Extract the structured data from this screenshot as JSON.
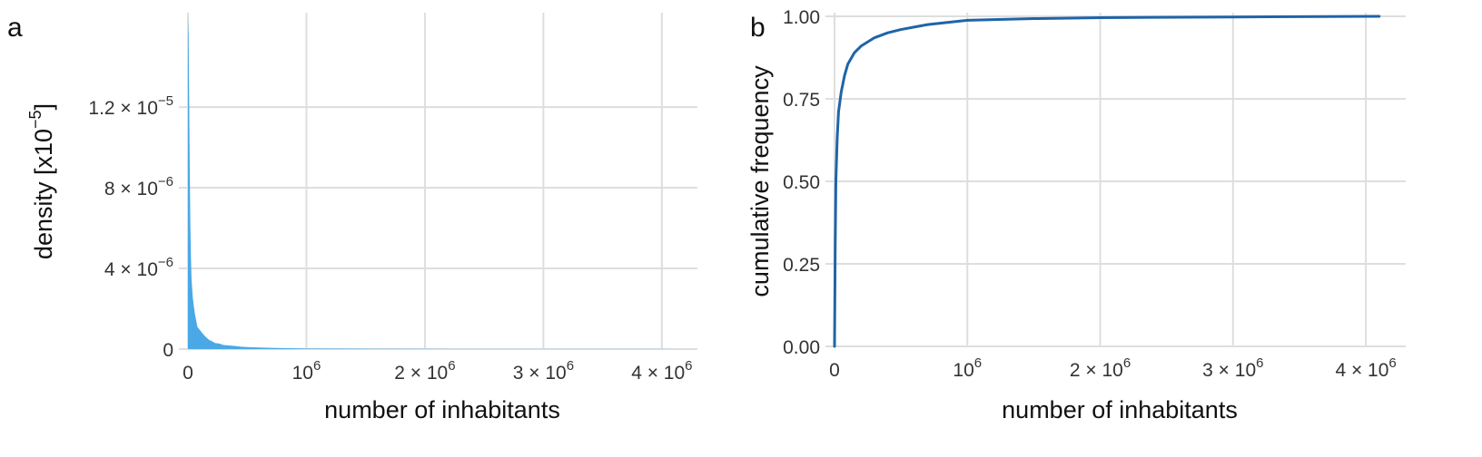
{
  "chart_data": [
    {
      "panel": "a",
      "type": "area",
      "xlabel": "number of inhabitants",
      "ylabel": "density [x10",
      "ylabel_exp": "−5",
      "ylabel_close": "]",
      "xlim": [
        0,
        4300000
      ],
      "ylim": [
        0,
        1.65e-05
      ],
      "grid": true,
      "color": "#4aa8e6",
      "x_ticks": [
        {
          "value": 0,
          "base": "0",
          "exp": ""
        },
        {
          "value": 1000000,
          "base": "10",
          "exp": "6"
        },
        {
          "value": 2000000,
          "base": "2 × 10",
          "exp": "6"
        },
        {
          "value": 3000000,
          "base": "3 × 10",
          "exp": "6"
        },
        {
          "value": 4000000,
          "base": "4 × 10",
          "exp": "6"
        }
      ],
      "y_ticks": [
        {
          "value": 0,
          "base": "0",
          "exp": ""
        },
        {
          "value": 4e-06,
          "base": "4 × 10",
          "exp": "−6"
        },
        {
          "value": 8e-06,
          "base": "8 × 10",
          "exp": "−6"
        },
        {
          "value": 1.2e-05,
          "base": "1.2 × 10",
          "exp": "−5"
        }
      ],
      "x": [
        0,
        5000,
        10000,
        15000,
        20000,
        25000,
        30000,
        40000,
        50000,
        60000,
        70000,
        80000,
        100000,
        120000,
        150000,
        180000,
        200000,
        230000,
        260000,
        300000,
        350000,
        400000,
        450000,
        500000,
        600000,
        700000,
        800000,
        900000,
        1000000,
        1500000,
        2000000,
        2500000,
        3000000,
        3500000,
        4000000,
        4100000
      ],
      "y": [
        1.65e-05,
        1.55e-05,
        1.25e-05,
        9e-06,
        6.2e-06,
        4.6e-06,
        3.5e-06,
        2.6e-06,
        2.1e-06,
        1.7e-06,
        1.4e-06,
        1.1e-06,
        9.5e-07,
        8e-07,
        6e-07,
        4.5e-07,
        4e-07,
        3e-07,
        2.8e-07,
        2e-07,
        1.8e-07,
        1.5e-07,
        1.2e-07,
        1e-07,
        8e-08,
        6e-08,
        5e-08,
        4e-08,
        3e-08,
        1.5e-08,
        1e-08,
        7e-09,
        5e-09,
        4e-09,
        3e-09,
        0
      ]
    },
    {
      "panel": "b",
      "type": "line",
      "xlabel": "number of inhabitants",
      "ylabel": "cumulative frequency",
      "xlim": [
        0,
        4300000
      ],
      "ylim": [
        0,
        1
      ],
      "grid": true,
      "color": "#1f64a8",
      "x_ticks": [
        {
          "value": 0,
          "base": "0",
          "exp": ""
        },
        {
          "value": 1000000,
          "base": "10",
          "exp": "6"
        },
        {
          "value": 2000000,
          "base": "2 × 10",
          "exp": "6"
        },
        {
          "value": 3000000,
          "base": "3 × 10",
          "exp": "6"
        },
        {
          "value": 4000000,
          "base": "4 × 10",
          "exp": "6"
        }
      ],
      "y_ticks": [
        {
          "value": 0,
          "base": "0.00",
          "exp": ""
        },
        {
          "value": 0.25,
          "base": "0.25",
          "exp": ""
        },
        {
          "value": 0.5,
          "base": "0.50",
          "exp": ""
        },
        {
          "value": 0.75,
          "base": "0.75",
          "exp": ""
        },
        {
          "value": 1,
          "base": "1.00",
          "exp": ""
        }
      ],
      "x": [
        0,
        5000,
        10000,
        20000,
        30000,
        50000,
        75000,
        100000,
        150000,
        200000,
        300000,
        400000,
        500000,
        700000,
        1000000,
        1500000,
        2000000,
        3000000,
        4100000
      ],
      "y": [
        0,
        0.3,
        0.5,
        0.63,
        0.71,
        0.77,
        0.82,
        0.855,
        0.89,
        0.91,
        0.935,
        0.95,
        0.96,
        0.975,
        0.988,
        0.993,
        0.996,
        0.998,
        1
      ]
    }
  ]
}
